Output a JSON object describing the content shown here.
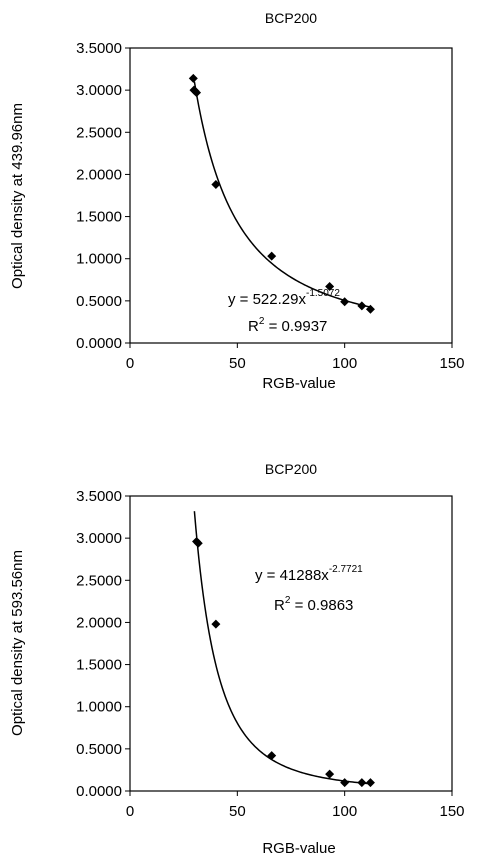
{
  "chart_data": [
    {
      "type": "scatter",
      "title": "BCP200",
      "xlabel": "RGB-value",
      "ylabel": "Optical density at 439.96nm",
      "xlim": [
        0,
        150
      ],
      "ylim": [
        0,
        3.5
      ],
      "x_ticks": [
        "0",
        "50",
        "100",
        "150"
      ],
      "y_ticks": [
        "0.0000",
        "0.5000",
        "1.0000",
        "1.5000",
        "2.0000",
        "2.5000",
        "3.0000",
        "3.5000"
      ],
      "grid": false,
      "legend": "none",
      "series": [
        {
          "points": [
            {
              "x": 29.5,
              "y": 3.14
            },
            {
              "x": 29.8,
              "y": 3.0
            },
            {
              "x": 30.3,
              "y": 2.99
            },
            {
              "x": 31.0,
              "y": 2.97
            },
            {
              "x": 40.0,
              "y": 1.88
            },
            {
              "x": 66.0,
              "y": 1.03
            },
            {
              "x": 93.0,
              "y": 0.67
            },
            {
              "x": 100.0,
              "y": 0.49
            },
            {
              "x": 108.0,
              "y": 0.44
            },
            {
              "x": 112.0,
              "y": 0.4
            }
          ]
        }
      ],
      "trendline": {
        "type": "power",
        "a": 522.29,
        "b": -1.5072,
        "x_range": [
          30,
          112
        ]
      },
      "equation": {
        "base": "y = 522.29x",
        "exponent": "-1.5072"
      },
      "r_squared": {
        "label": "R",
        "sup": "2",
        "value": " = 0.9937"
      }
    },
    {
      "type": "scatter",
      "title": "BCP200",
      "xlabel": "RGB-value",
      "ylabel": "Optical density at 593.56nm",
      "xlim": [
        0,
        150
      ],
      "ylim": [
        0,
        3.5
      ],
      "x_ticks": [
        "0",
        "50",
        "100",
        "150"
      ],
      "y_ticks": [
        "0.0000",
        "0.5000",
        "1.0000",
        "1.5000",
        "2.0000",
        "2.5000",
        "3.0000",
        "3.5000"
      ],
      "grid": false,
      "legend": "none",
      "series": [
        {
          "points": [
            {
              "x": 31.0,
              "y": 2.96
            },
            {
              "x": 31.8,
              "y": 2.94
            },
            {
              "x": 40.0,
              "y": 1.98
            },
            {
              "x": 66.0,
              "y": 0.42
            },
            {
              "x": 93.0,
              "y": 0.2
            },
            {
              "x": 100.0,
              "y": 0.1
            },
            {
              "x": 108.0,
              "y": 0.1
            },
            {
              "x": 112.0,
              "y": 0.1
            }
          ]
        }
      ],
      "trendline": {
        "type": "power",
        "a": 41288,
        "b": -2.7721,
        "x_range": [
          30,
          112
        ]
      },
      "equation": {
        "base": "y = 41288x",
        "exponent": "-2.7721"
      },
      "r_squared": {
        "label": "R",
        "sup": "2",
        "value": " = 0.9863"
      }
    }
  ]
}
